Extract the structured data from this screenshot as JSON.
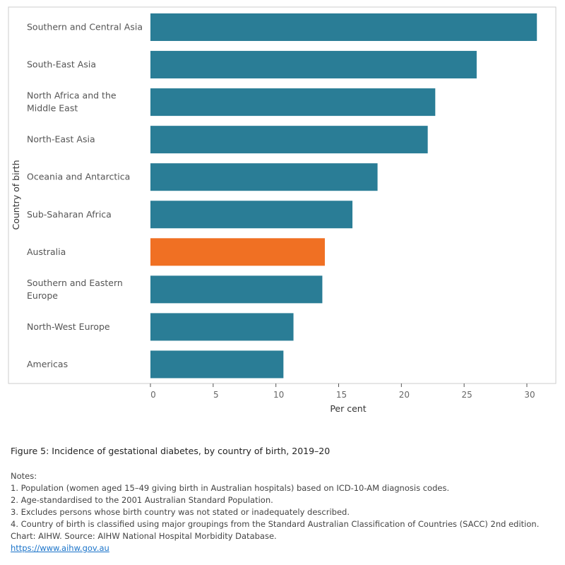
{
  "chart_data": {
    "type": "bar",
    "orientation": "horizontal",
    "categories": [
      "Southern and Central Asia",
      "South-East Asia",
      "North Africa and the Middle East",
      "North-East Asia",
      "Oceania and Antarctica",
      "Sub-Saharan Africa",
      "Australia",
      "Southern and Eastern Europe",
      "North-West Europe",
      "Americas"
    ],
    "values": [
      30.8,
      26.0,
      22.7,
      22.1,
      18.1,
      16.1,
      13.9,
      13.7,
      11.4,
      10.6
    ],
    "highlight": "Australia",
    "colors": {
      "default": "#2a7d96",
      "highlight": "#f07023"
    },
    "xlabel": "Per cent",
    "ylabel": "Country of birth",
    "xlim": [
      0,
      32.3
    ],
    "xticks": [
      0,
      5,
      10,
      15,
      20,
      25,
      30
    ],
    "grid": false
  },
  "figure_title": "Figure 5: Incidence of gestational diabetes, by country of birth, 2019–20",
  "notes": [
    "Notes:",
    "1. Population (women aged 15–49 giving birth in Australian hospitals) based on ICD-10-AM diagnosis codes.",
    "2. Age-standardised to the 2001 Australian Standard Population.",
    "3. Excludes persons whose birth country was not stated or inadequately described.",
    "4. Country of birth is classified using major groupings from the Standard Australian Classification of Countries (SACC) 2nd edition.",
    "Chart: AIHW.  Source: AIHW National Hospital Morbidity Database."
  ],
  "link": "https://www.aihw.gov.au"
}
